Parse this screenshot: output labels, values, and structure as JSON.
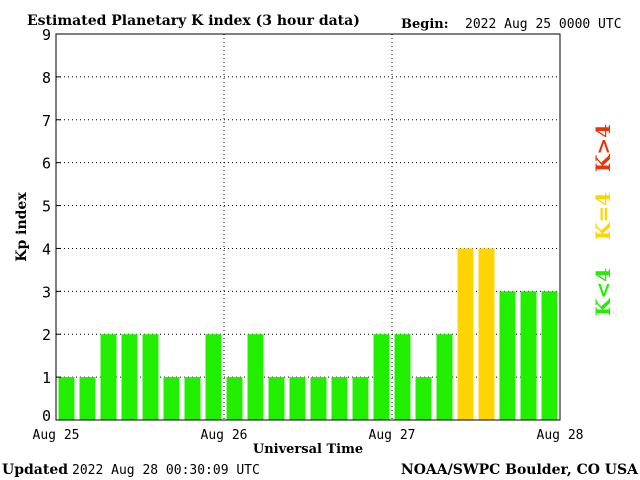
{
  "header": {
    "title": "Estimated Planetary K index (3 hour data)",
    "begin_label": "Begin:",
    "begin_value": "2022 Aug 25 0000 UTC"
  },
  "footer": {
    "updated_label": "Updated",
    "updated_value": "2022 Aug 28 00:30:09 UTC",
    "source": "NOAA/SWPC Boulder, CO USA"
  },
  "legend": {
    "low": "K<4",
    "equal": "K=4",
    "high": "K>4"
  },
  "colors": {
    "low": "#22ee00",
    "equal": "#ffd400",
    "high": "#ee3300"
  },
  "chart_data": {
    "type": "bar",
    "ylabel": "Kp index",
    "xlabel": "Universal Time",
    "ylim": [
      0,
      9
    ],
    "yticks": [
      0,
      1,
      2,
      3,
      4,
      5,
      6,
      7,
      8,
      9
    ],
    "xtick_labels": [
      "Aug 25",
      "Aug 26",
      "Aug 27",
      "Aug 28"
    ],
    "grid": true,
    "values": [
      1,
      1,
      2,
      2,
      2,
      1,
      1,
      2,
      1,
      2,
      1,
      1,
      1,
      1,
      1,
      2,
      2,
      1,
      2,
      4,
      4,
      3,
      3,
      3
    ]
  }
}
